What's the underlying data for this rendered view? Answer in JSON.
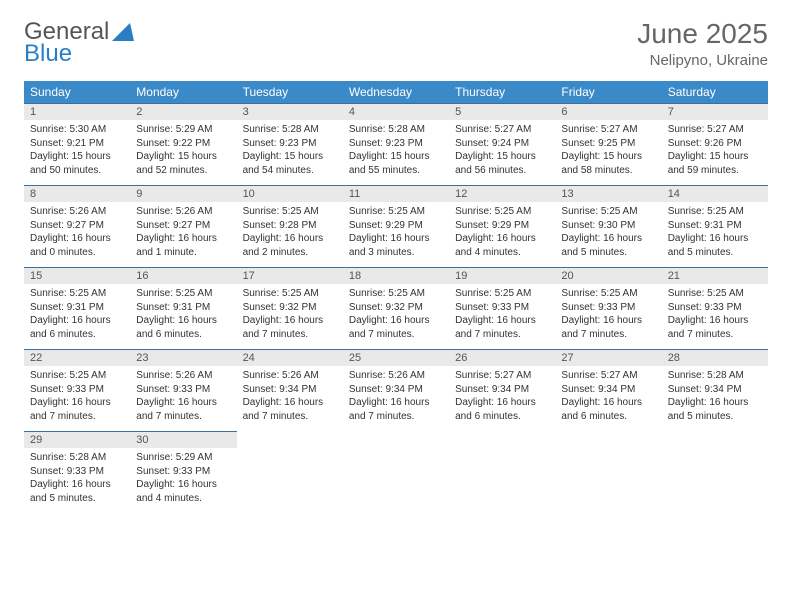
{
  "logo": {
    "text1": "General",
    "text2": "Blue"
  },
  "title": "June 2025",
  "location": "Nelipyno, Ukraine",
  "colors": {
    "header_bg": "#3a89c9",
    "header_text": "#ffffff",
    "daynum_bg": "#e9e9e9",
    "daynum_border": "#3a6fa0",
    "body_text": "#333333",
    "title_text": "#666666"
  },
  "weekdays": [
    "Sunday",
    "Monday",
    "Tuesday",
    "Wednesday",
    "Thursday",
    "Friday",
    "Saturday"
  ],
  "days": [
    {
      "n": "1",
      "sr": "Sunrise: 5:30 AM",
      "ss": "Sunset: 9:21 PM",
      "dl": "Daylight: 15 hours and 50 minutes."
    },
    {
      "n": "2",
      "sr": "Sunrise: 5:29 AM",
      "ss": "Sunset: 9:22 PM",
      "dl": "Daylight: 15 hours and 52 minutes."
    },
    {
      "n": "3",
      "sr": "Sunrise: 5:28 AM",
      "ss": "Sunset: 9:23 PM",
      "dl": "Daylight: 15 hours and 54 minutes."
    },
    {
      "n": "4",
      "sr": "Sunrise: 5:28 AM",
      "ss": "Sunset: 9:23 PM",
      "dl": "Daylight: 15 hours and 55 minutes."
    },
    {
      "n": "5",
      "sr": "Sunrise: 5:27 AM",
      "ss": "Sunset: 9:24 PM",
      "dl": "Daylight: 15 hours and 56 minutes."
    },
    {
      "n": "6",
      "sr": "Sunrise: 5:27 AM",
      "ss": "Sunset: 9:25 PM",
      "dl": "Daylight: 15 hours and 58 minutes."
    },
    {
      "n": "7",
      "sr": "Sunrise: 5:27 AM",
      "ss": "Sunset: 9:26 PM",
      "dl": "Daylight: 15 hours and 59 minutes."
    },
    {
      "n": "8",
      "sr": "Sunrise: 5:26 AM",
      "ss": "Sunset: 9:27 PM",
      "dl": "Daylight: 16 hours and 0 minutes."
    },
    {
      "n": "9",
      "sr": "Sunrise: 5:26 AM",
      "ss": "Sunset: 9:27 PM",
      "dl": "Daylight: 16 hours and 1 minute."
    },
    {
      "n": "10",
      "sr": "Sunrise: 5:25 AM",
      "ss": "Sunset: 9:28 PM",
      "dl": "Daylight: 16 hours and 2 minutes."
    },
    {
      "n": "11",
      "sr": "Sunrise: 5:25 AM",
      "ss": "Sunset: 9:29 PM",
      "dl": "Daylight: 16 hours and 3 minutes."
    },
    {
      "n": "12",
      "sr": "Sunrise: 5:25 AM",
      "ss": "Sunset: 9:29 PM",
      "dl": "Daylight: 16 hours and 4 minutes."
    },
    {
      "n": "13",
      "sr": "Sunrise: 5:25 AM",
      "ss": "Sunset: 9:30 PM",
      "dl": "Daylight: 16 hours and 5 minutes."
    },
    {
      "n": "14",
      "sr": "Sunrise: 5:25 AM",
      "ss": "Sunset: 9:31 PM",
      "dl": "Daylight: 16 hours and 5 minutes."
    },
    {
      "n": "15",
      "sr": "Sunrise: 5:25 AM",
      "ss": "Sunset: 9:31 PM",
      "dl": "Daylight: 16 hours and 6 minutes."
    },
    {
      "n": "16",
      "sr": "Sunrise: 5:25 AM",
      "ss": "Sunset: 9:31 PM",
      "dl": "Daylight: 16 hours and 6 minutes."
    },
    {
      "n": "17",
      "sr": "Sunrise: 5:25 AM",
      "ss": "Sunset: 9:32 PM",
      "dl": "Daylight: 16 hours and 7 minutes."
    },
    {
      "n": "18",
      "sr": "Sunrise: 5:25 AM",
      "ss": "Sunset: 9:32 PM",
      "dl": "Daylight: 16 hours and 7 minutes."
    },
    {
      "n": "19",
      "sr": "Sunrise: 5:25 AM",
      "ss": "Sunset: 9:33 PM",
      "dl": "Daylight: 16 hours and 7 minutes."
    },
    {
      "n": "20",
      "sr": "Sunrise: 5:25 AM",
      "ss": "Sunset: 9:33 PM",
      "dl": "Daylight: 16 hours and 7 minutes."
    },
    {
      "n": "21",
      "sr": "Sunrise: 5:25 AM",
      "ss": "Sunset: 9:33 PM",
      "dl": "Daylight: 16 hours and 7 minutes."
    },
    {
      "n": "22",
      "sr": "Sunrise: 5:25 AM",
      "ss": "Sunset: 9:33 PM",
      "dl": "Daylight: 16 hours and 7 minutes."
    },
    {
      "n": "23",
      "sr": "Sunrise: 5:26 AM",
      "ss": "Sunset: 9:33 PM",
      "dl": "Daylight: 16 hours and 7 minutes."
    },
    {
      "n": "24",
      "sr": "Sunrise: 5:26 AM",
      "ss": "Sunset: 9:34 PM",
      "dl": "Daylight: 16 hours and 7 minutes."
    },
    {
      "n": "25",
      "sr": "Sunrise: 5:26 AM",
      "ss": "Sunset: 9:34 PM",
      "dl": "Daylight: 16 hours and 7 minutes."
    },
    {
      "n": "26",
      "sr": "Sunrise: 5:27 AM",
      "ss": "Sunset: 9:34 PM",
      "dl": "Daylight: 16 hours and 6 minutes."
    },
    {
      "n": "27",
      "sr": "Sunrise: 5:27 AM",
      "ss": "Sunset: 9:34 PM",
      "dl": "Daylight: 16 hours and 6 minutes."
    },
    {
      "n": "28",
      "sr": "Sunrise: 5:28 AM",
      "ss": "Sunset: 9:34 PM",
      "dl": "Daylight: 16 hours and 5 minutes."
    },
    {
      "n": "29",
      "sr": "Sunrise: 5:28 AM",
      "ss": "Sunset: 9:33 PM",
      "dl": "Daylight: 16 hours and 5 minutes."
    },
    {
      "n": "30",
      "sr": "Sunrise: 5:29 AM",
      "ss": "Sunset: 9:33 PM",
      "dl": "Daylight: 16 hours and 4 minutes."
    }
  ]
}
